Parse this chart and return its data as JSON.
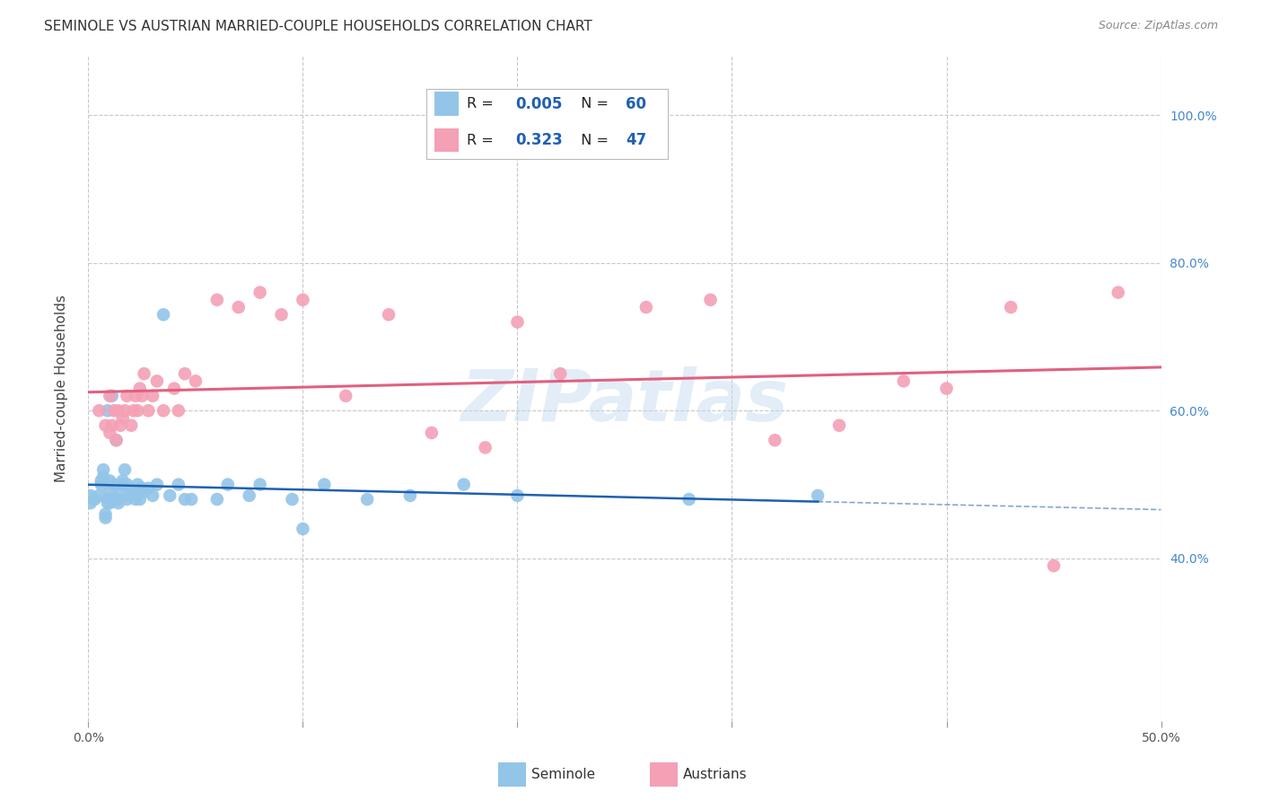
{
  "title": "SEMINOLE VS AUSTRIAN MARRIED-COUPLE HOUSEHOLDS CORRELATION CHART",
  "source": "Source: ZipAtlas.com",
  "ylabel": "Married-couple Households",
  "watermark": "ZIPatlas",
  "seminole_color": "#92C5E8",
  "austrians_color": "#F4A0B5",
  "seminole_line_color": "#2060B0",
  "austrians_line_color": "#E06080",
  "background_color": "#FFFFFF",
  "grid_color": "#C8C8C8",
  "xlim": [
    0.0,
    0.5
  ],
  "ylim": [
    0.18,
    1.08
  ],
  "seminole_R": 0.005,
  "seminole_N": 60,
  "austrians_R": 0.323,
  "austrians_N": 47,
  "seminole_x": [
    0.001,
    0.001,
    0.003,
    0.005,
    0.006,
    0.006,
    0.007,
    0.007,
    0.008,
    0.008,
    0.009,
    0.009,
    0.009,
    0.01,
    0.01,
    0.01,
    0.01,
    0.011,
    0.011,
    0.012,
    0.012,
    0.013,
    0.013,
    0.014,
    0.014,
    0.015,
    0.016,
    0.016,
    0.017,
    0.018,
    0.018,
    0.019,
    0.02,
    0.021,
    0.022,
    0.023,
    0.024,
    0.025,
    0.026,
    0.028,
    0.03,
    0.032,
    0.035,
    0.038,
    0.042,
    0.045,
    0.048,
    0.06,
    0.065,
    0.075,
    0.08,
    0.095,
    0.1,
    0.11,
    0.13,
    0.15,
    0.175,
    0.2,
    0.28,
    0.34
  ],
  "seminole_y": [
    0.485,
    0.475,
    0.48,
    0.485,
    0.5,
    0.505,
    0.51,
    0.52,
    0.455,
    0.46,
    0.475,
    0.48,
    0.6,
    0.475,
    0.48,
    0.49,
    0.505,
    0.48,
    0.62,
    0.48,
    0.5,
    0.48,
    0.56,
    0.475,
    0.48,
    0.49,
    0.5,
    0.505,
    0.52,
    0.48,
    0.5,
    0.485,
    0.485,
    0.49,
    0.48,
    0.5,
    0.48,
    0.495,
    0.49,
    0.495,
    0.485,
    0.5,
    0.73,
    0.485,
    0.5,
    0.48,
    0.48,
    0.48,
    0.5,
    0.485,
    0.5,
    0.48,
    0.44,
    0.5,
    0.48,
    0.485,
    0.5,
    0.485,
    0.48,
    0.485
  ],
  "austrians_x": [
    0.005,
    0.008,
    0.01,
    0.01,
    0.011,
    0.012,
    0.013,
    0.014,
    0.015,
    0.016,
    0.017,
    0.018,
    0.02,
    0.021,
    0.022,
    0.023,
    0.024,
    0.025,
    0.026,
    0.028,
    0.03,
    0.032,
    0.035,
    0.04,
    0.042,
    0.045,
    0.05,
    0.06,
    0.07,
    0.08,
    0.09,
    0.1,
    0.12,
    0.14,
    0.16,
    0.185,
    0.2,
    0.22,
    0.26,
    0.29,
    0.32,
    0.35,
    0.38,
    0.4,
    0.43,
    0.45,
    0.48
  ],
  "austrians_y": [
    0.6,
    0.58,
    0.57,
    0.62,
    0.58,
    0.6,
    0.56,
    0.6,
    0.58,
    0.59,
    0.6,
    0.62,
    0.58,
    0.6,
    0.62,
    0.6,
    0.63,
    0.62,
    0.65,
    0.6,
    0.62,
    0.64,
    0.6,
    0.63,
    0.6,
    0.65,
    0.64,
    0.75,
    0.74,
    0.76,
    0.73,
    0.75,
    0.62,
    0.73,
    0.57,
    0.55,
    0.72,
    0.65,
    0.74,
    0.75,
    0.56,
    0.58,
    0.64,
    0.63,
    0.74,
    0.39,
    0.76
  ]
}
